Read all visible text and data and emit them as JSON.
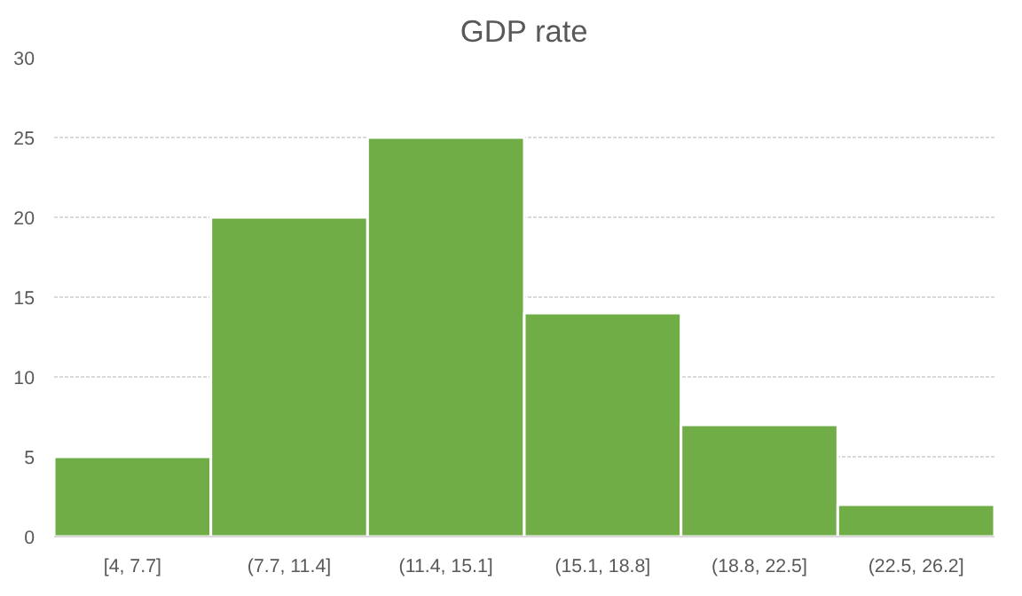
{
  "chart_data": {
    "type": "bar",
    "title": "GDP rate",
    "categories": [
      "[4, 7.7]",
      "(7.7, 11.4]",
      "(11.4, 15.1]",
      "(15.1, 18.8]",
      "(18.8, 22.5]",
      "(22.5, 26.2]"
    ],
    "values": [
      5,
      20,
      25,
      14,
      7,
      2
    ],
    "color": "#70ad47",
    "ylim": [
      0,
      30
    ],
    "yticks": [
      0,
      5,
      10,
      15,
      20,
      25,
      30
    ],
    "grid": "y"
  }
}
